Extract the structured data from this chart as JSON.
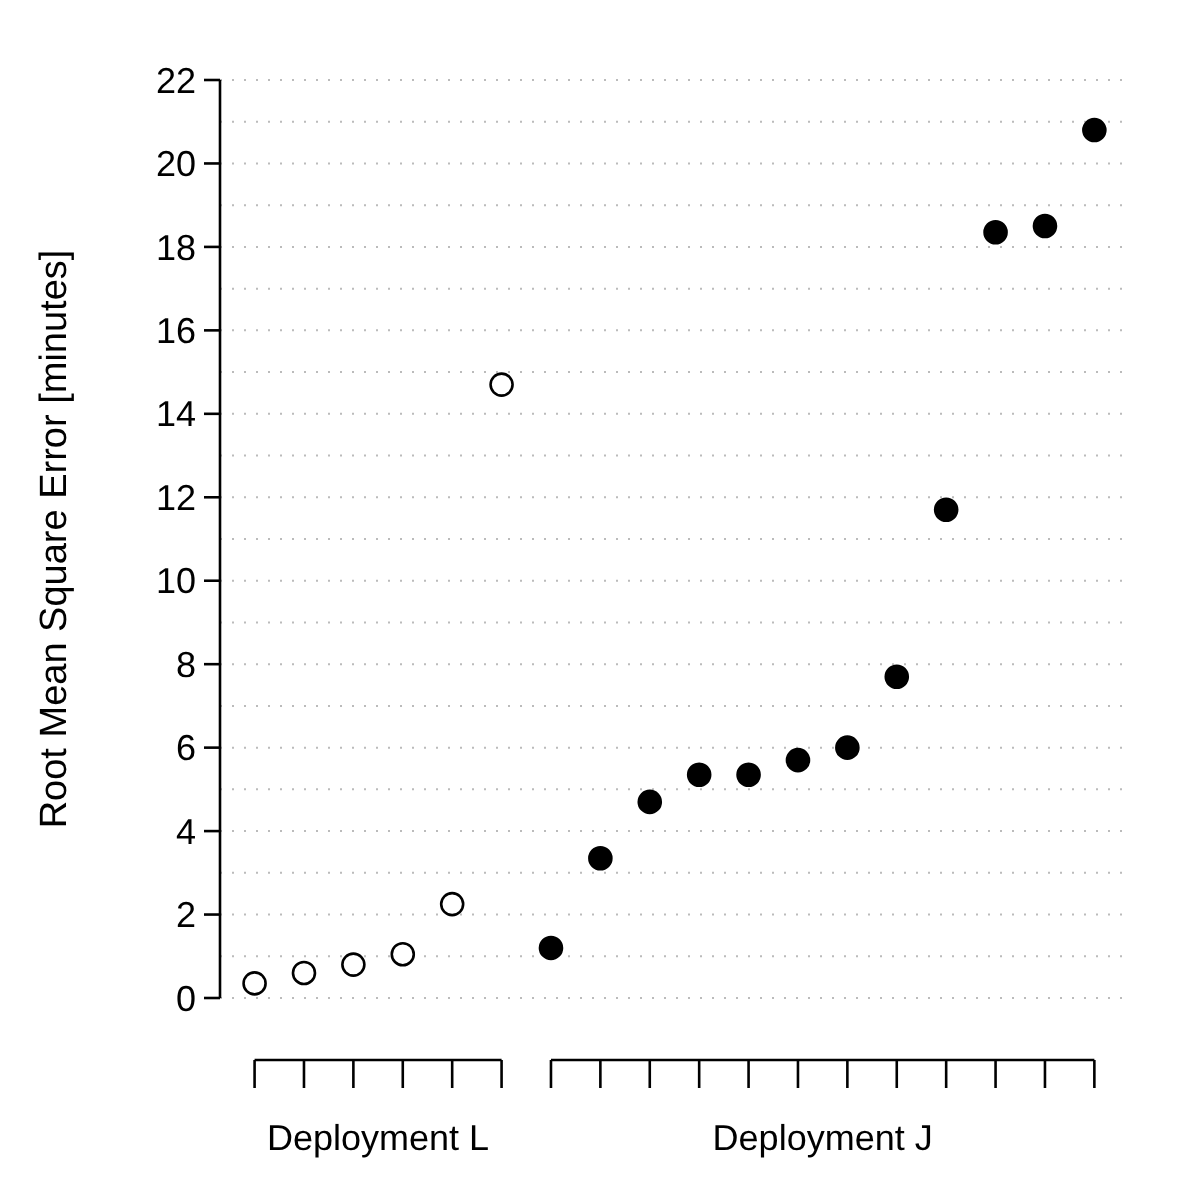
{
  "chart_data": {
    "type": "scatter",
    "ylabel": "Root Mean Square Error [minutes]",
    "categories": [
      null,
      null,
      null,
      null,
      null,
      null,
      null,
      null,
      null,
      null,
      null,
      null,
      null,
      null,
      null,
      null,
      null,
      null
    ],
    "series": [
      {
        "color": "#ffffff",
        "values": [
          0.35,
          0.6,
          0.8,
          1.05,
          2.25,
          14.7,
          null,
          null,
          null,
          null,
          null,
          null,
          null,
          null,
          null,
          null,
          null,
          null
        ]
      },
      {
        "color": "#000000",
        "values": [
          null,
          null,
          null,
          null,
          null,
          null,
          1.2,
          3.35,
          4.7,
          5.35,
          5.35,
          5.7,
          6.0,
          7.7,
          11.7,
          18.35,
          18.5,
          20.8
        ]
      }
    ],
    "annotations": [
      "Deployment L",
      "Deployment J"
    ],
    "ylim": [
      0,
      22
    ],
    "yticks": [
      0,
      {
        "value": 1,
        "label": null
      },
      2,
      {
        "value": 3,
        "label": null
      },
      4,
      {
        "value": 5,
        "label": null
      },
      6,
      {
        "value": 7,
        "label": null
      },
      8,
      {
        "value": 9,
        "label": null
      },
      10,
      {
        "value": 11,
        "label": null
      },
      12,
      {
        "value": 13,
        "label": null
      },
      14,
      {
        "value": 15,
        "label": null
      },
      16,
      {
        "value": 17,
        "label": null
      },
      18,
      {
        "value": 19,
        "label": null
      },
      20,
      {
        "value": 21,
        "label": null
      },
      22
    ],
    "grid": "y",
    "marker": "circle",
    "legend": false
  }
}
